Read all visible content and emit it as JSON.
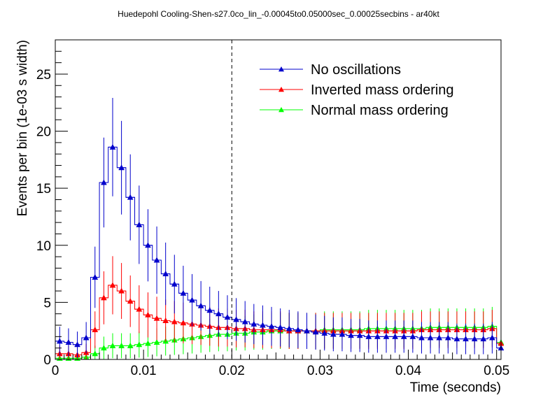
{
  "chart_data": {
    "type": "line",
    "title": "Huedepohl Cooling-Shen-s27.0co_lin_-0.00045to0.05000sec_0.00025secbins - ar40kt",
    "xlabel": "Time (seconds)",
    "ylabel": "Events per bin (1e-03 s width)",
    "xlim": [
      0,
      0.0505
    ],
    "ylim": [
      0,
      28
    ],
    "x_ticks": [
      0,
      0.01,
      0.02,
      0.03,
      0.04,
      0.05
    ],
    "x_tick_labels": [
      "0",
      "0.01",
      "0.02",
      "0.03",
      "0.04",
      "0.05"
    ],
    "y_ticks": [
      0,
      5,
      10,
      15,
      20,
      25
    ],
    "y_tick_labels": [
      "0",
      "5",
      "10",
      "15",
      "20",
      "25"
    ],
    "vertical_marker": 0.02,
    "bin_width": 0.001,
    "grid": false,
    "legend_position": "top-right",
    "x": [
      0.0005,
      0.0015,
      0.0025,
      0.0035,
      0.0045,
      0.0055,
      0.0065,
      0.0075,
      0.0085,
      0.0095,
      0.0105,
      0.0115,
      0.0125,
      0.0135,
      0.0145,
      0.0155,
      0.0165,
      0.0175,
      0.0185,
      0.0195,
      0.0205,
      0.0215,
      0.0225,
      0.0235,
      0.0245,
      0.0255,
      0.0265,
      0.0275,
      0.0285,
      0.0295,
      0.0305,
      0.0315,
      0.0325,
      0.0335,
      0.0345,
      0.0355,
      0.0365,
      0.0375,
      0.0385,
      0.0395,
      0.0405,
      0.0415,
      0.0425,
      0.0435,
      0.0445,
      0.0455,
      0.0465,
      0.0475,
      0.0485,
      0.0495,
      0.0505
    ],
    "series": [
      {
        "name": "No oscillations",
        "color": "#0000cc",
        "values": [
          1.6,
          1.5,
          1.3,
          1.9,
          7.2,
          15.5,
          18.6,
          16.8,
          14.2,
          11.8,
          10.0,
          8.7,
          7.5,
          6.6,
          5.8,
          5.2,
          4.7,
          4.3,
          4.0,
          3.7,
          3.5,
          3.3,
          3.1,
          3.0,
          2.9,
          2.8,
          2.7,
          2.6,
          2.5,
          2.4,
          2.3,
          2.2,
          2.2,
          2.1,
          2.1,
          2.0,
          2.0,
          2.0,
          2.0,
          2.0,
          2.0,
          1.9,
          1.9,
          1.9,
          1.9,
          1.8,
          1.8,
          1.8,
          1.8,
          1.9,
          1.0
        ]
      },
      {
        "name": "Inverted mass ordering",
        "color": "#ff0000",
        "values": [
          0.5,
          0.5,
          0.4,
          0.6,
          2.6,
          5.4,
          6.5,
          6.0,
          5.1,
          4.4,
          3.9,
          3.6,
          3.4,
          3.3,
          3.2,
          3.1,
          3.0,
          2.9,
          2.8,
          2.8,
          2.7,
          2.7,
          2.6,
          2.6,
          2.6,
          2.6,
          2.5,
          2.5,
          2.5,
          2.5,
          2.5,
          2.5,
          2.5,
          2.5,
          2.5,
          2.5,
          2.5,
          2.5,
          2.5,
          2.5,
          2.5,
          2.6,
          2.6,
          2.6,
          2.6,
          2.6,
          2.6,
          2.6,
          2.6,
          2.7,
          1.4
        ]
      },
      {
        "name": "Normal mass ordering",
        "color": "#00ff00",
        "values": [
          0.1,
          0.1,
          0.1,
          0.2,
          0.5,
          1.0,
          1.2,
          1.2,
          1.2,
          1.3,
          1.4,
          1.5,
          1.6,
          1.7,
          1.8,
          1.9,
          2.0,
          2.1,
          2.2,
          2.2,
          2.3,
          2.3,
          2.4,
          2.4,
          2.5,
          2.5,
          2.5,
          2.5,
          2.5,
          2.5,
          2.6,
          2.6,
          2.6,
          2.6,
          2.6,
          2.7,
          2.7,
          2.7,
          2.7,
          2.7,
          2.7,
          2.7,
          2.8,
          2.8,
          2.8,
          2.8,
          2.8,
          2.8,
          2.8,
          2.9,
          1.5
        ]
      }
    ]
  }
}
